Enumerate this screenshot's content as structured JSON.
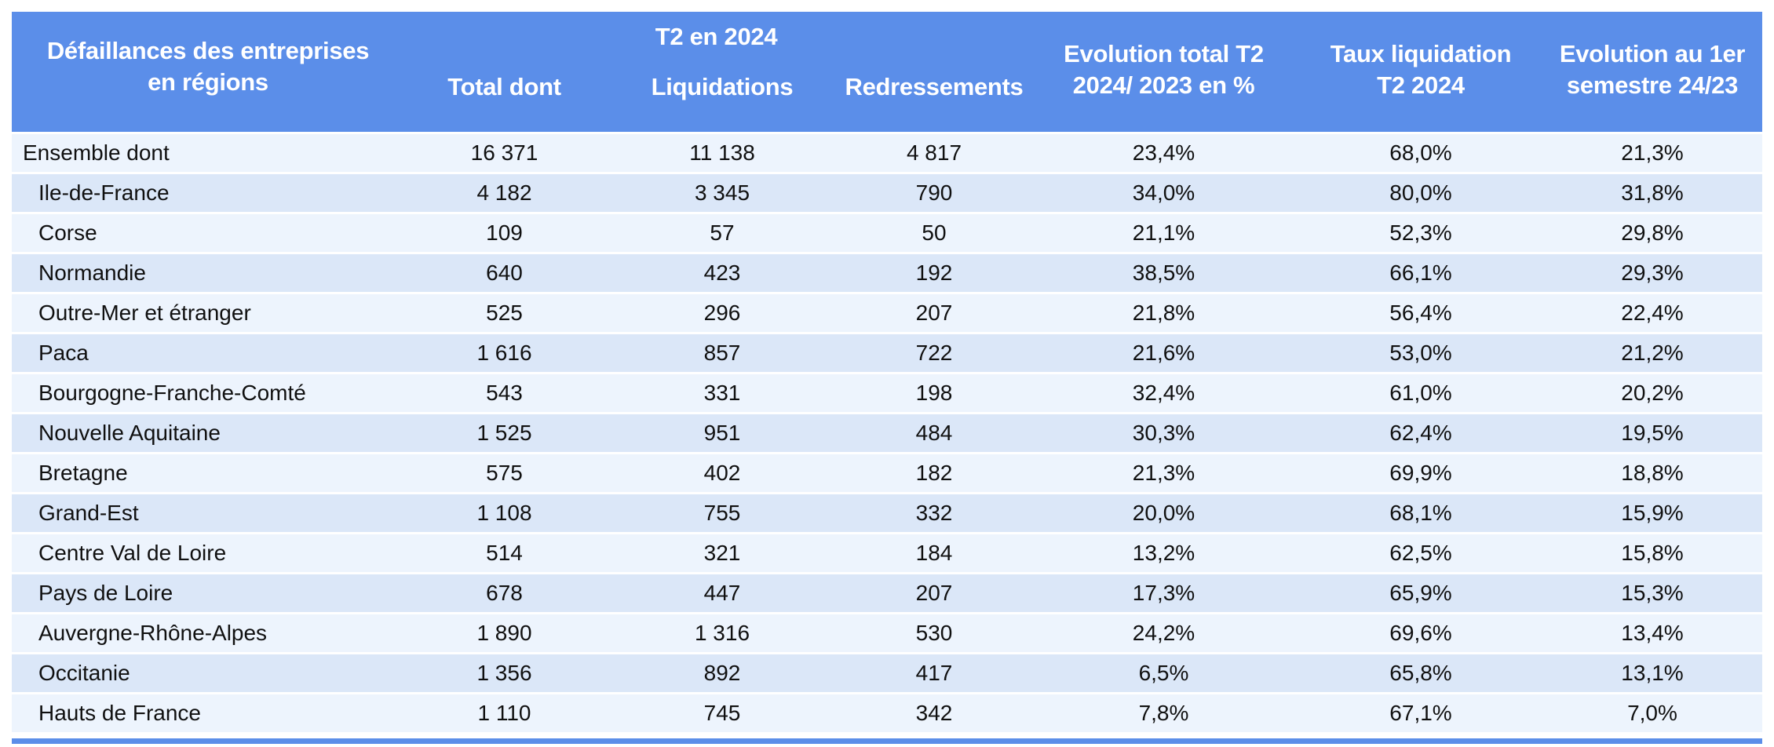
{
  "table": {
    "title": "Défaillances des entreprises en régions",
    "header": {
      "col1_line1": "Défaillances des entreprises",
      "col1_line2": "en régions",
      "group_label": "T2 en 2024",
      "sub_columns": [
        "Total dont",
        "Liquidations",
        "Redressements"
      ],
      "col5_line1": "Evolution total T2",
      "col5_line2": "2024/ 2023 en %",
      "col6_line1": "Taux liquidation",
      "col6_line2": "T2 2024",
      "col7_line1": "Evolution au 1er",
      "col7_line2": "semestre 24/23"
    },
    "rows": [
      {
        "region": "Ensemble dont",
        "total": "16 371",
        "liquidations": "11 138",
        "redressements": "4 817",
        "evolution_t2": "23,4%",
        "taux_liquidation": "68,0%",
        "evolution_semestre": "21,3%"
      },
      {
        "region": "Ile-de-France",
        "total": "4 182",
        "liquidations": "3 345",
        "redressements": "790",
        "evolution_t2": "34,0%",
        "taux_liquidation": "80,0%",
        "evolution_semestre": "31,8%"
      },
      {
        "region": "Corse",
        "total": "109",
        "liquidations": "57",
        "redressements": "50",
        "evolution_t2": "21,1%",
        "taux_liquidation": "52,3%",
        "evolution_semestre": "29,8%"
      },
      {
        "region": "Normandie",
        "total": "640",
        "liquidations": "423",
        "redressements": "192",
        "evolution_t2": "38,5%",
        "taux_liquidation": "66,1%",
        "evolution_semestre": "29,3%"
      },
      {
        "region": "Outre-Mer et étranger",
        "total": "525",
        "liquidations": "296",
        "redressements": "207",
        "evolution_t2": "21,8%",
        "taux_liquidation": "56,4%",
        "evolution_semestre": "22,4%"
      },
      {
        "region": "Paca",
        "total": "1 616",
        "liquidations": "857",
        "redressements": "722",
        "evolution_t2": "21,6%",
        "taux_liquidation": "53,0%",
        "evolution_semestre": "21,2%"
      },
      {
        "region": "Bourgogne-Franche-Comté",
        "total": "543",
        "liquidations": "331",
        "redressements": "198",
        "evolution_t2": "32,4%",
        "taux_liquidation": "61,0%",
        "evolution_semestre": "20,2%"
      },
      {
        "region": "Nouvelle Aquitaine",
        "total": "1 525",
        "liquidations": "951",
        "redressements": "484",
        "evolution_t2": "30,3%",
        "taux_liquidation": "62,4%",
        "evolution_semestre": "19,5%"
      },
      {
        "region": "Bretagne",
        "total": "575",
        "liquidations": "402",
        "redressements": "182",
        "evolution_t2": "21,3%",
        "taux_liquidation": "69,9%",
        "evolution_semestre": "18,8%"
      },
      {
        "region": "Grand-Est",
        "total": "1 108",
        "liquidations": "755",
        "redressements": "332",
        "evolution_t2": "20,0%",
        "taux_liquidation": "68,1%",
        "evolution_semestre": "15,9%"
      },
      {
        "region": "Centre Val de Loire",
        "total": "514",
        "liquidations": "321",
        "redressements": "184",
        "evolution_t2": "13,2%",
        "taux_liquidation": "62,5%",
        "evolution_semestre": "15,8%"
      },
      {
        "region": "Pays de Loire",
        "total": "678",
        "liquidations": "447",
        "redressements": "207",
        "evolution_t2": "17,3%",
        "taux_liquidation": "65,9%",
        "evolution_semestre": "15,3%"
      },
      {
        "region": "Auvergne-Rhône-Alpes",
        "total": "1 890",
        "liquidations": "1 316",
        "redressements": "530",
        "evolution_t2": "24,2%",
        "taux_liquidation": "69,6%",
        "evolution_semestre": "13,4%"
      },
      {
        "region": "Occitanie",
        "total": "1 356",
        "liquidations": "892",
        "redressements": "417",
        "evolution_t2": "6,5%",
        "taux_liquidation": "65,8%",
        "evolution_semestre": "13,1%"
      },
      {
        "region": "Hauts de France",
        "total": "1 110",
        "liquidations": "745",
        "redressements": "342",
        "evolution_t2": "7,8%",
        "taux_liquidation": "67,1%",
        "evolution_semestre": "7,0%"
      }
    ]
  },
  "colors": {
    "header_blue": "#5b8ee9",
    "header_text": "#ffffff",
    "row_light": "#edf4fd",
    "row_dark": "#dbe7f8"
  }
}
